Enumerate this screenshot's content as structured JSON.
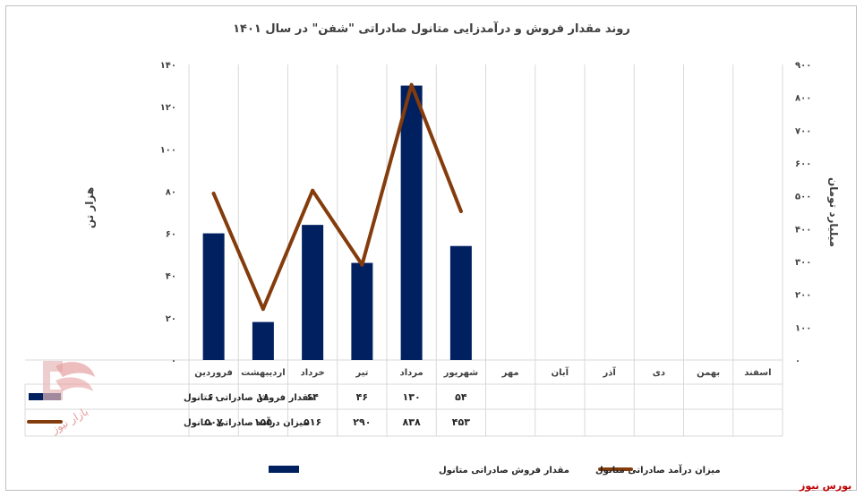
{
  "chart_data": {
    "type": "bar-line",
    "title": "روند مقدار فروش و درآمدزایی متانول صادراتی \"شفن\" در سال ۱۴۰۱",
    "y_left_label": "هزار تن",
    "y_right_label": "میلیارد تومان",
    "y_left_range": [
      0,
      140
    ],
    "y_left_ticks": [
      "۰",
      "۲۰",
      "۴۰",
      "۶۰",
      "۸۰",
      "۱۰۰",
      "۱۲۰",
      "۱۴۰"
    ],
    "y_right_range": [
      0,
      900
    ],
    "y_right_ticks": [
      "۰",
      "۱۰۰",
      "۲۰۰",
      "۳۰۰",
      "۴۰۰",
      "۵۰۰",
      "۶۰۰",
      "۷۰۰",
      "۸۰۰",
      "۹۰۰"
    ],
    "categories": [
      "فروردین",
      "اردیبهشت",
      "خرداد",
      "تیر",
      "مرداد",
      "شهریور",
      "مهر",
      "آبان",
      "آذر",
      "دی",
      "بهمن",
      "اسفند"
    ],
    "series": [
      {
        "name": "مقدار فروش صادراتی متانول",
        "kind": "bar",
        "axis": "left",
        "color": "#002060",
        "values": [
          60,
          18,
          64,
          46,
          130,
          54,
          null,
          null,
          null,
          null,
          null,
          null
        ],
        "labels": [
          "۶۰",
          "۱۸",
          "۶۴",
          "۴۶",
          "۱۳۰",
          "۵۴",
          "",
          "",
          "",
          "",
          "",
          ""
        ]
      },
      {
        "name": "میزان درآمد صادراتی متانول",
        "kind": "line",
        "axis": "right",
        "color": "#843c0c",
        "values": [
          507,
          155,
          516,
          290,
          838,
          453,
          null,
          null,
          null,
          null,
          null,
          null
        ],
        "labels": [
          "۵۰۷",
          "۱۵۵",
          "۵۱۶",
          "۲۹۰",
          "۸۳۸",
          "۴۵۳",
          "",
          "",
          "",
          "",
          "",
          ""
        ]
      }
    ],
    "legend": [
      {
        "label": "میزان درآمد صادراتی متانول",
        "color": "#843c0c",
        "kind": "line"
      },
      {
        "label": "مقدار فروش صادراتی متانول",
        "color": "#002060",
        "kind": "bar"
      }
    ],
    "grid": true,
    "legend_position": "bottom"
  },
  "brand": "بورس نیوز",
  "watermark_text": "بازار نیوز"
}
